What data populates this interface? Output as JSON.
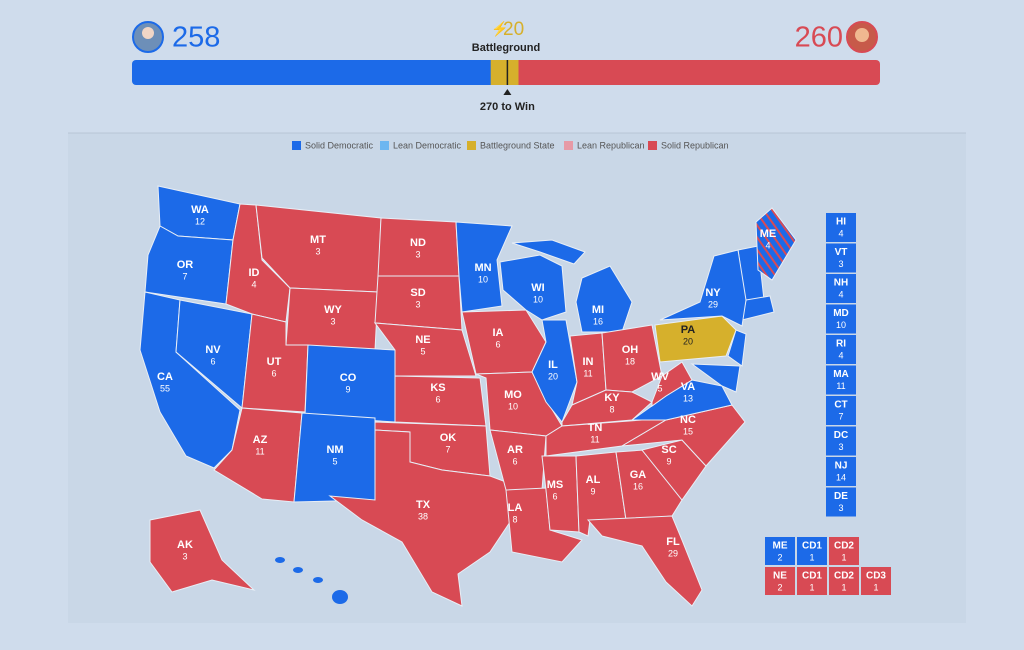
{
  "header": {
    "dem_votes": 258,
    "rep_votes": 260,
    "battleground_votes": 20,
    "battleground_label": "Battleground",
    "win_threshold": {
      "value": 270,
      "label": "270 to Win"
    },
    "dem_color": "#1c6ae8",
    "rep_color": "#d84a54",
    "battleground_color": "#d6b02c"
  },
  "legend": [
    {
      "label": "Solid Democratic",
      "color": "#1c6ae8"
    },
    {
      "label": "Lean Democratic",
      "color": "#6db6f0"
    },
    {
      "label": "Battleground State",
      "color": "#d6b02c"
    },
    {
      "label": "Lean Republican",
      "color": "#e79aa6"
    },
    {
      "label": "Solid Republican",
      "color": "#d84a54"
    }
  ],
  "states": [
    {
      "abbr": "WA",
      "votes": 12,
      "color": "#1c6ae8"
    },
    {
      "abbr": "OR",
      "votes": 7,
      "color": "#1c6ae8"
    },
    {
      "abbr": "CA",
      "votes": 55,
      "color": "#1c6ae8"
    },
    {
      "abbr": "NV",
      "votes": 6,
      "color": "#1c6ae8"
    },
    {
      "abbr": "ID",
      "votes": 4,
      "color": "#d84a54"
    },
    {
      "abbr": "MT",
      "votes": 3,
      "color": "#d84a54"
    },
    {
      "abbr": "WY",
      "votes": 3,
      "color": "#d84a54"
    },
    {
      "abbr": "UT",
      "votes": 6,
      "color": "#d84a54"
    },
    {
      "abbr": "CO",
      "votes": 9,
      "color": "#1c6ae8"
    },
    {
      "abbr": "AZ",
      "votes": 11,
      "color": "#d84a54"
    },
    {
      "abbr": "NM",
      "votes": 5,
      "color": "#1c6ae8"
    },
    {
      "abbr": "ND",
      "votes": 3,
      "color": "#d84a54"
    },
    {
      "abbr": "SD",
      "votes": 3,
      "color": "#d84a54"
    },
    {
      "abbr": "NE",
      "votes": 5,
      "color": "#d84a54"
    },
    {
      "abbr": "KS",
      "votes": 6,
      "color": "#d84a54"
    },
    {
      "abbr": "OK",
      "votes": 7,
      "color": "#d84a54"
    },
    {
      "abbr": "TX",
      "votes": 38,
      "color": "#d84a54"
    },
    {
      "abbr": "MN",
      "votes": 10,
      "color": "#1c6ae8"
    },
    {
      "abbr": "IA",
      "votes": 6,
      "color": "#d84a54"
    },
    {
      "abbr": "MO",
      "votes": 10,
      "color": "#d84a54"
    },
    {
      "abbr": "AR",
      "votes": 6,
      "color": "#d84a54"
    },
    {
      "abbr": "LA",
      "votes": 8,
      "color": "#d84a54"
    },
    {
      "abbr": "WI",
      "votes": 10,
      "color": "#1c6ae8"
    },
    {
      "abbr": "IL",
      "votes": 20,
      "color": "#1c6ae8"
    },
    {
      "abbr": "MI",
      "votes": 16,
      "color": "#1c6ae8"
    },
    {
      "abbr": "IN",
      "votes": 11,
      "color": "#d84a54"
    },
    {
      "abbr": "OH",
      "votes": 18,
      "color": "#d84a54"
    },
    {
      "abbr": "KY",
      "votes": 8,
      "color": "#d84a54"
    },
    {
      "abbr": "TN",
      "votes": 11,
      "color": "#d84a54"
    },
    {
      "abbr": "MS",
      "votes": 6,
      "color": "#d84a54"
    },
    {
      "abbr": "AL",
      "votes": 9,
      "color": "#d84a54"
    },
    {
      "abbr": "GA",
      "votes": 16,
      "color": "#d84a54"
    },
    {
      "abbr": "FL",
      "votes": 29,
      "color": "#d84a54"
    },
    {
      "abbr": "SC",
      "votes": 9,
      "color": "#d84a54"
    },
    {
      "abbr": "NC",
      "votes": 15,
      "color": "#d84a54"
    },
    {
      "abbr": "VA",
      "votes": 13,
      "color": "#1c6ae8"
    },
    {
      "abbr": "WV",
      "votes": 5,
      "color": "#d84a54"
    },
    {
      "abbr": "PA",
      "votes": 20,
      "color": "#d6b02c"
    },
    {
      "abbr": "NY",
      "votes": 29,
      "color": "#1c6ae8"
    },
    {
      "abbr": "ME",
      "votes": 4,
      "color": "#1c6ae8"
    },
    {
      "abbr": "AK",
      "votes": 3,
      "color": "#d84a54"
    }
  ],
  "small_states": [
    {
      "abbr": "HI",
      "votes": 4,
      "color": "#1c6ae8"
    },
    {
      "abbr": "VT",
      "votes": 3,
      "color": "#1c6ae8"
    },
    {
      "abbr": "NH",
      "votes": 4,
      "color": "#1c6ae8"
    },
    {
      "abbr": "MD",
      "votes": 10,
      "color": "#1c6ae8"
    },
    {
      "abbr": "RI",
      "votes": 4,
      "color": "#1c6ae8"
    },
    {
      "abbr": "MA",
      "votes": 11,
      "color": "#1c6ae8"
    },
    {
      "abbr": "CT",
      "votes": 7,
      "color": "#1c6ae8"
    },
    {
      "abbr": "DC",
      "votes": 3,
      "color": "#1c6ae8"
    },
    {
      "abbr": "NJ",
      "votes": 14,
      "color": "#1c6ae8"
    },
    {
      "abbr": "DE",
      "votes": 3,
      "color": "#1c6ae8"
    }
  ],
  "districts": {
    "maine": [
      {
        "label": "ME",
        "votes": 2,
        "color": "#1c6ae8"
      },
      {
        "label": "CD1",
        "votes": 1,
        "color": "#1c6ae8"
      },
      {
        "label": "CD2",
        "votes": 1,
        "color": "#d84a54"
      }
    ],
    "nebraska": [
      {
        "label": "NE",
        "votes": 2,
        "color": "#d84a54"
      },
      {
        "label": "CD1",
        "votes": 1,
        "color": "#d84a54"
      },
      {
        "label": "CD2",
        "votes": 1,
        "color": "#d84a54"
      },
      {
        "label": "CD3",
        "votes": 1,
        "color": "#d84a54"
      }
    ]
  }
}
